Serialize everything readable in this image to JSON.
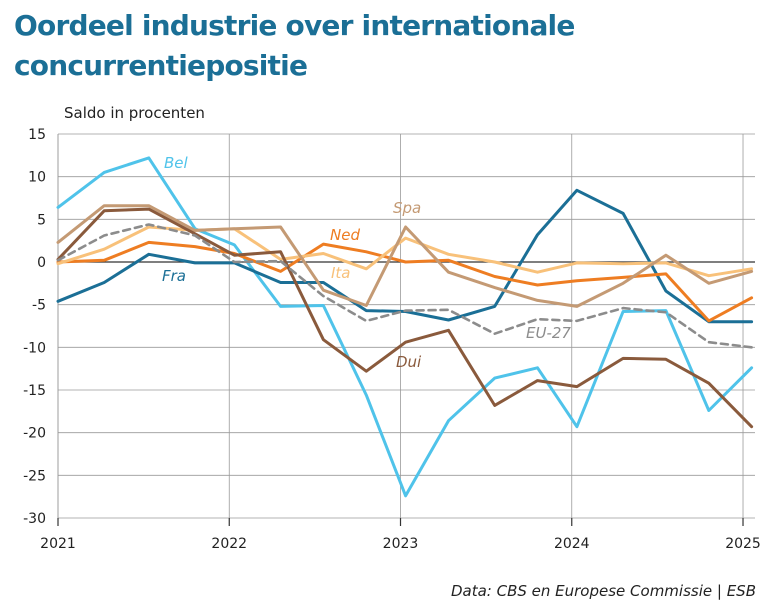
{
  "title": "Oordeel industrie over internationale concurrentiepositie",
  "source": "Data: CBS en Europese Commissie | ESB",
  "chart_data": {
    "type": "line",
    "title": "Oordeel industrie over internationale concurrentiepositie",
    "ylabel": "Saldo in procenten",
    "xlabel": "",
    "ylim": [
      -30,
      15
    ],
    "xlim": [
      2021.0,
      2025.07
    ],
    "yticks": [
      15,
      10,
      5,
      0,
      -5,
      -10,
      -15,
      -20,
      -25,
      -30
    ],
    "xticks": [
      "2021",
      "2022",
      "2023",
      "2024",
      "2025"
    ],
    "grid": true,
    "x": [
      2021.0,
      2021.27,
      2021.53,
      2021.8,
      2022.03,
      2022.3,
      2022.55,
      2022.8,
      2023.03,
      2023.28,
      2023.55,
      2023.8,
      2024.03,
      2024.3,
      2024.55,
      2024.8,
      2025.05
    ],
    "series": [
      {
        "name": "Bel",
        "color": "#4fc3ea",
        "dash": false,
        "values": [
          6.4,
          10.5,
          12.2,
          3.9,
          2.0,
          -5.2,
          -5.1,
          -15.6,
          -27.4,
          -18.6,
          -13.6,
          -12.4,
          -19.3,
          -5.8,
          -5.7,
          -17.4,
          -12.4
        ]
      },
      {
        "name": "Fra",
        "color": "#1b6f96",
        "dash": false,
        "values": [
          -4.6,
          -2.4,
          0.9,
          -0.1,
          -0.1,
          -2.4,
          -2.4,
          -5.7,
          -5.8,
          -6.8,
          -5.2,
          3.2,
          8.4,
          5.7,
          -3.4,
          -7.0,
          -7.0
        ]
      },
      {
        "name": "Ned",
        "color": "#ee7d22",
        "dash": false,
        "values": [
          0.0,
          0.2,
          2.3,
          1.8,
          1.0,
          -1.1,
          2.1,
          1.2,
          0.0,
          0.2,
          -1.7,
          -2.7,
          -2.2,
          -1.8,
          -1.4,
          -6.9,
          -4.2
        ]
      },
      {
        "name": "Ita",
        "color": "#f8c17a",
        "dash": false,
        "values": [
          -0.2,
          1.5,
          4.1,
          3.7,
          3.9,
          0.3,
          1.0,
          -0.8,
          2.8,
          0.9,
          0.0,
          -1.2,
          -0.1,
          -0.2,
          -0.1,
          -1.6,
          -0.8
        ]
      },
      {
        "name": "Spa",
        "color": "#c49a74",
        "dash": false,
        "values": [
          2.3,
          6.6,
          6.6,
          3.7,
          3.9,
          4.1,
          -3.3,
          -5.1,
          4.1,
          -1.2,
          -3.0,
          -4.5,
          -5.2,
          -2.5,
          0.8,
          -2.5,
          -1.1
        ]
      },
      {
        "name": "Dui",
        "color": "#8a5a3c",
        "dash": false,
        "values": [
          0.3,
          6.0,
          6.2,
          3.3,
          0.8,
          1.2,
          -9.1,
          -12.8,
          -9.4,
          -8.0,
          -16.8,
          -13.9,
          -14.6,
          -11.3,
          -11.4,
          -14.2,
          -19.3
        ]
      },
      {
        "name": "EU-27",
        "color": "#8c8c8c",
        "dash": true,
        "values": [
          0.2,
          3.1,
          4.4,
          3.1,
          0.0,
          0.1,
          -4.0,
          -6.9,
          -5.7,
          -5.6,
          -8.4,
          -6.7,
          -6.9,
          -5.4,
          -5.9,
          -9.4,
          -10.0
        ]
      }
    ],
    "labels": [
      {
        "text": "Bel",
        "series": "Bel"
      },
      {
        "text": "Fra",
        "series": "Fra"
      },
      {
        "text": "Ned",
        "series": "Ned"
      },
      {
        "text": "Ita",
        "series": "Ita"
      },
      {
        "text": "Spa",
        "series": "Spa"
      },
      {
        "text": "Dui",
        "series": "Dui"
      },
      {
        "text": "EU-27",
        "series": "EU-27"
      }
    ]
  }
}
